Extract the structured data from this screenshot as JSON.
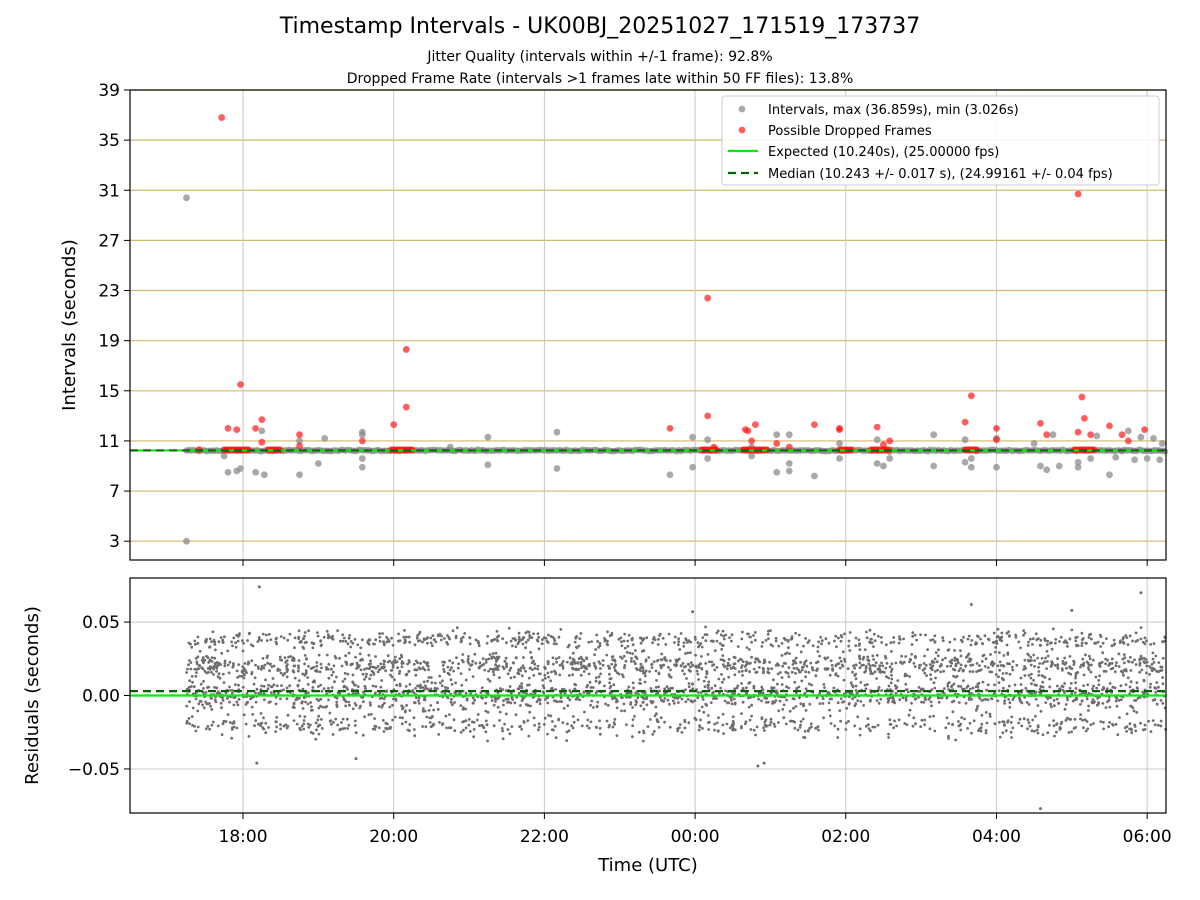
{
  "title": "Timestamp Intervals - UK00BJ_20251027_171519_173737",
  "subtitle_jitter": "Jitter Quality (intervals within +/-1 frame): 92.8%",
  "subtitle_dropped": "Dropped Frame Rate (intervals >1 frames late within 50 FF files): 13.8%",
  "colors": {
    "intervals": "#8c8c8c",
    "dropped": "#ff1a1a",
    "expected": "#00ee00",
    "median": "#006400",
    "hgrid_top": "#d4b86a",
    "vgrid": "#c8c8c8",
    "residual_points": "#6e6e6e"
  },
  "chart_data": [
    {
      "type": "scatter",
      "ylabel": "Intervals (seconds)",
      "xlabel": "",
      "ylim": [
        1.5,
        39
      ],
      "yticks": [
        3,
        7,
        11,
        15,
        19,
        23,
        27,
        31,
        35,
        39
      ],
      "xticks": [
        "18:00",
        "20:00",
        "22:00",
        "00:00",
        "02:00",
        "04:00",
        "06:00"
      ],
      "grid": true,
      "legend_position": "top-right",
      "legend": [
        "Intervals, max (36.859s), min (3.026s)",
        "Possible Dropped Frames",
        "Expected (10.240s), (25.00000 fps)",
        "Median (10.243 +/- 0.017 s), (24.99161 +/- 0.04 fps)"
      ],
      "expected_interval": 10.24,
      "median_interval": 10.243,
      "baseline_range": [
        "17:15",
        "06:15"
      ],
      "series": [
        {
          "name": "Intervals, max (36.859s), min (3.026s)",
          "points": [
            [
              "17:15",
              30.4
            ],
            [
              "17:15",
              3.0
            ],
            [
              "17:25",
              10.2
            ],
            [
              "17:45",
              9.8
            ],
            [
              "17:48",
              8.5
            ],
            [
              "17:55",
              8.6
            ],
            [
              "17:58",
              8.8
            ],
            [
              "18:10",
              8.5
            ],
            [
              "18:15",
              11.8
            ],
            [
              "18:17",
              8.3
            ],
            [
              "18:45",
              8.3
            ],
            [
              "18:45",
              11.0
            ],
            [
              "19:00",
              9.2
            ],
            [
              "19:05",
              11.2
            ],
            [
              "19:35",
              8.9
            ],
            [
              "19:35",
              9.6
            ],
            [
              "19:35",
              11.7
            ],
            [
              "19:35",
              11.5
            ],
            [
              "20:45",
              10.5
            ],
            [
              "21:15",
              9.1
            ],
            [
              "21:15",
              11.3
            ],
            [
              "22:10",
              8.8
            ],
            [
              "22:10",
              11.7
            ],
            [
              "23:40",
              8.3
            ],
            [
              "23:58",
              11.3
            ],
            [
              "23:58",
              8.9
            ],
            [
              "00:10",
              11.1
            ],
            [
              "00:10",
              9.6
            ],
            [
              "00:45",
              9.8
            ],
            [
              "00:45",
              10.5
            ],
            [
              "01:05",
              8.5
            ],
            [
              "01:05",
              11.5
            ],
            [
              "01:15",
              11.5
            ],
            [
              "01:15",
              9.2
            ],
            [
              "01:15",
              8.6
            ],
            [
              "01:35",
              8.2
            ],
            [
              "01:55",
              9.6
            ],
            [
              "01:55",
              10.8
            ],
            [
              "02:25",
              11.1
            ],
            [
              "02:25",
              9.2
            ],
            [
              "02:30",
              9.0
            ],
            [
              "02:35",
              9.6
            ],
            [
              "03:10",
              11.5
            ],
            [
              "03:10",
              9.0
            ],
            [
              "03:35",
              11.1
            ],
            [
              "03:35",
              9.3
            ],
            [
              "03:40",
              8.9
            ],
            [
              "03:40",
              9.6
            ],
            [
              "04:00",
              8.9
            ],
            [
              "04:00",
              11.2
            ],
            [
              "04:30",
              10.8
            ],
            [
              "04:35",
              9.0
            ],
            [
              "04:40",
              8.7
            ],
            [
              "04:45",
              11.5
            ],
            [
              "04:50",
              9.0
            ],
            [
              "05:05",
              8.9
            ],
            [
              "05:05",
              9.3
            ],
            [
              "05:15",
              9.6
            ],
            [
              "05:20",
              11.4
            ],
            [
              "05:30",
              8.3
            ],
            [
              "05:35",
              9.7
            ],
            [
              "05:40",
              10.2
            ],
            [
              "05:45",
              11.8
            ],
            [
              "05:50",
              9.5
            ],
            [
              "05:55",
              11.3
            ],
            [
              "06:00",
              9.6
            ],
            [
              "06:05",
              11.2
            ],
            [
              "06:10",
              9.5
            ],
            [
              "06:12",
              10.8
            ]
          ]
        },
        {
          "name": "Possible Dropped Frames",
          "points": [
            [
              "17:25",
              10.3
            ],
            [
              "17:43",
              36.8
            ],
            [
              "17:48",
              12.0
            ],
            [
              "17:55",
              11.9
            ],
            [
              "17:58",
              15.5
            ],
            [
              "18:10",
              12.0
            ],
            [
              "18:15",
              12.7
            ],
            [
              "18:15",
              10.9
            ],
            [
              "18:45",
              11.5
            ],
            [
              "18:45",
              10.6
            ],
            [
              "19:35",
              11.0
            ],
            [
              "20:00",
              12.3
            ],
            [
              "20:10",
              13.7
            ],
            [
              "20:10",
              18.3
            ],
            [
              "23:40",
              12.0
            ],
            [
              "00:10",
              13.0
            ],
            [
              "00:10",
              22.4
            ],
            [
              "00:15",
              10.5
            ],
            [
              "00:40",
              11.9
            ],
            [
              "00:42",
              11.8
            ],
            [
              "00:45",
              11.0
            ],
            [
              "00:48",
              12.3
            ],
            [
              "01:05",
              10.8
            ],
            [
              "01:15",
              10.5
            ],
            [
              "01:35",
              12.3
            ],
            [
              "01:55",
              12.0
            ],
            [
              "01:55",
              11.9
            ],
            [
              "02:25",
              12.1
            ],
            [
              "02:30",
              10.7
            ],
            [
              "02:35",
              11.0
            ],
            [
              "03:35",
              12.5
            ],
            [
              "03:40",
              14.6
            ],
            [
              "04:00",
              12.0
            ],
            [
              "04:00",
              11.1
            ],
            [
              "04:35",
              12.4
            ],
            [
              "04:40",
              11.5
            ],
            [
              "05:05",
              30.7
            ],
            [
              "05:05",
              11.7
            ],
            [
              "05:08",
              14.5
            ],
            [
              "05:10",
              12.8
            ],
            [
              "05:15",
              11.5
            ],
            [
              "05:30",
              12.2
            ],
            [
              "05:40",
              11.5
            ],
            [
              "05:45",
              11.0
            ],
            [
              "05:58",
              11.9
            ]
          ],
          "dense_clusters_at_expected": [
            [
              "17:45",
              "18:05"
            ],
            [
              "18:20",
              "18:30"
            ],
            [
              "19:58",
              "20:15"
            ],
            [
              "00:05",
              "00:18"
            ],
            [
              "00:38",
              "00:58"
            ],
            [
              "01:55",
              "02:05"
            ],
            [
              "02:20",
              "02:35"
            ],
            [
              "03:35",
              "03:45"
            ],
            [
              "05:02",
              "05:18"
            ]
          ]
        }
      ]
    },
    {
      "type": "scatter",
      "ylabel": "Residuals (seconds)",
      "xlabel": "Time (UTC)",
      "ylim": [
        -0.08,
        0.08
      ],
      "yticks": [
        "0.05",
        "0.00",
        "−0.05"
      ],
      "yticks_values": [
        0.05,
        0.0,
        -0.05
      ],
      "xticks": [
        "18:00",
        "20:00",
        "22:00",
        "00:00",
        "02:00",
        "04:00",
        "06:00"
      ],
      "grid": true,
      "x_range": [
        "17:15",
        "06:15"
      ],
      "expected_residual": 0.0,
      "median_residual": 0.003,
      "bands": [
        {
          "center": 0.02,
          "spread": 0.008,
          "share": 0.33
        },
        {
          "center": 0.0,
          "spread": 0.008,
          "share": 0.37
        },
        {
          "center": -0.02,
          "spread": 0.006,
          "share": 0.14
        },
        {
          "center": 0.038,
          "spread": 0.005,
          "share": 0.16
        }
      ],
      "outliers": [
        [
          "18:13",
          0.074
        ],
        [
          "18:11",
          -0.046
        ],
        [
          "19:30",
          -0.043
        ],
        [
          "23:58",
          0.057
        ],
        [
          "00:50",
          -0.048
        ],
        [
          "00:55",
          -0.046
        ],
        [
          "03:40",
          0.062
        ],
        [
          "04:35",
          -0.077
        ],
        [
          "05:00",
          0.058
        ],
        [
          "05:55",
          0.07
        ]
      ]
    }
  ]
}
